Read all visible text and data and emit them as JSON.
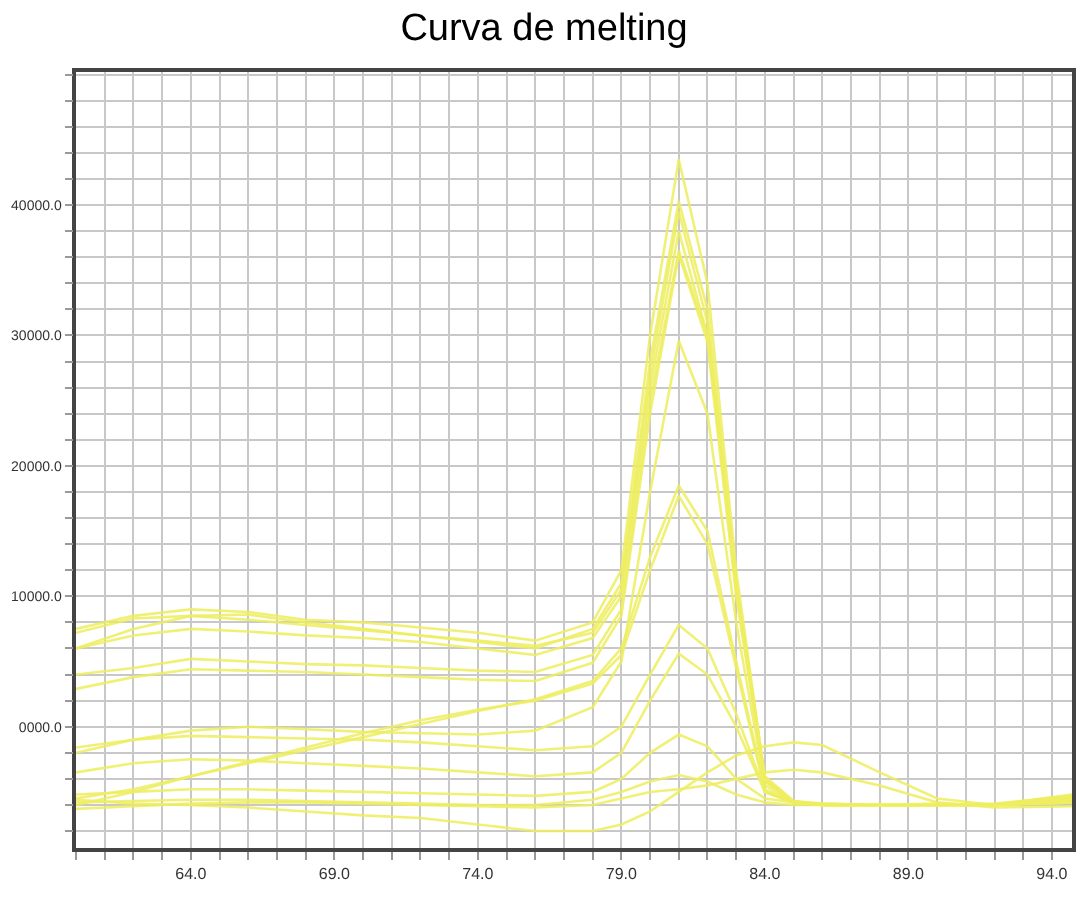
{
  "chart_data": {
    "type": "line",
    "title": "Curva de melting",
    "x": [
      60,
      62,
      64,
      66,
      68,
      70,
      72,
      74,
      76,
      78,
      79,
      80,
      81,
      82,
      83,
      84,
      85,
      86,
      88,
      90,
      92,
      94.7
    ],
    "series": [
      {
        "color": "#eeee60",
        "values": [
          7500,
          8500,
          9000,
          8800,
          8200,
          8000,
          7600,
          7200,
          6600,
          8000,
          12000,
          30000,
          43500,
          34000,
          12000,
          -4000,
          -5800,
          -6000,
          -6000,
          -5900,
          -6000,
          -5200
        ]
      },
      {
        "color": "#eeee60",
        "values": [
          6000,
          7500,
          8500,
          8600,
          8000,
          7500,
          7000,
          6500,
          6000,
          7500,
          11000,
          28000,
          40300,
          32000,
          11000,
          -4000,
          -5800,
          -5900,
          -6000,
          -6000,
          -6000,
          -5500
        ]
      },
      {
        "color": "#eeee60",
        "values": [
          7200,
          8300,
          8500,
          8200,
          7800,
          7400,
          7000,
          6600,
          6200,
          7200,
          10500,
          27000,
          39500,
          31000,
          11000,
          -4200,
          -5800,
          -6000,
          -6000,
          -6000,
          -5900,
          -5300
        ]
      },
      {
        "color": "#eeee60",
        "values": [
          6000,
          7000,
          7500,
          7300,
          7000,
          6800,
          6500,
          6000,
          5500,
          6800,
          10000,
          26000,
          38000,
          30000,
          10500,
          -4200,
          -5700,
          -6000,
          -6000,
          -6000,
          -6000,
          -5600
        ]
      },
      {
        "color": "#eeee60",
        "values": [
          4000,
          4500,
          5200,
          5000,
          4800,
          4700,
          4500,
          4300,
          4200,
          5500,
          9000,
          25000,
          36500,
          30000,
          11000,
          -3800,
          -5700,
          -5900,
          -6000,
          -6000,
          -6000,
          -5600
        ]
      },
      {
        "color": "#eeee60",
        "values": [
          2900,
          3800,
          4400,
          4300,
          4200,
          4000,
          3800,
          3600,
          3500,
          4900,
          8500,
          24000,
          36200,
          29500,
          10000,
          -4000,
          -5800,
          -6000,
          -6000,
          -6000,
          -6000,
          -5500
        ]
      },
      {
        "color": "#eeee60",
        "values": [
          -2000,
          -1000,
          -300,
          0,
          -200,
          -400,
          -500,
          -600,
          -300,
          1500,
          5000,
          18000,
          29600,
          24000,
          8000,
          -4500,
          -5800,
          -6000,
          -6000,
          -6000,
          -6000,
          -5600
        ]
      },
      {
        "color": "#eeee60",
        "values": [
          -6000,
          -5000,
          -3800,
          -2800,
          -1800,
          -800,
          200,
          1200,
          2100,
          3500,
          6000,
          13000,
          18500,
          15000,
          5000,
          -4800,
          -5800,
          -6000,
          -6000,
          -6000,
          -6000,
          -5600
        ]
      },
      {
        "color": "#eeee60",
        "values": [
          -5500,
          -4800,
          -3800,
          -2700,
          -1600,
          -500,
          500,
          1300,
          2000,
          3300,
          5500,
          12000,
          17700,
          14000,
          4500,
          -5000,
          -5800,
          -6000,
          -6000,
          -6000,
          -6000,
          -5700
        ]
      },
      {
        "color": "#eeee60",
        "values": [
          -1600,
          -1000,
          -700,
          -800,
          -900,
          -1000,
          -1200,
          -1500,
          -1800,
          -1500,
          0,
          4000,
          7800,
          6000,
          1000,
          -5000,
          -5800,
          -6000,
          -6000,
          -6000,
          -6000,
          -5800
        ]
      },
      {
        "color": "#eeee60",
        "values": [
          -3500,
          -2800,
          -2500,
          -2600,
          -2800,
          -3000,
          -3200,
          -3500,
          -3800,
          -3500,
          -2000,
          2000,
          5600,
          4000,
          0,
          -5000,
          -5800,
          -6000,
          -6000,
          -6000,
          -6000,
          -5800
        ]
      },
      {
        "color": "#eeee60",
        "values": [
          -5200,
          -5000,
          -4800,
          -4800,
          -4900,
          -5000,
          -5100,
          -5200,
          -5300,
          -5000,
          -4000,
          -2000,
          -600,
          -1500,
          -4000,
          -5500,
          -5800,
          -6000,
          -6000,
          -6000,
          -6000,
          -5700
        ]
      },
      {
        "color": "#eeee60",
        "values": [
          -5800,
          -5700,
          -5600,
          -5600,
          -5700,
          -5800,
          -5900,
          -6000,
          -6000,
          -5600,
          -5000,
          -4200,
          -3700,
          -4200,
          -5200,
          -5800,
          -6000,
          -6000,
          -6000,
          -6000,
          -6000,
          -5800
        ]
      },
      {
        "color": "#eeee60",
        "values": [
          -5600,
          -5900,
          -6000,
          -6200,
          -6500,
          -6800,
          -7000,
          -7500,
          -8000,
          -8000,
          -7500,
          -6500,
          -5000,
          -3500,
          -2200,
          -1500,
          -1200,
          -1400,
          -3500,
          -5500,
          -6000,
          -5400
        ]
      },
      {
        "color": "#eeee60",
        "values": [
          -6300,
          -6100,
          -5900,
          -5800,
          -5800,
          -5900,
          -6000,
          -6100,
          -6200,
          -6000,
          -5500,
          -5000,
          -4800,
          -4500,
          -4000,
          -3500,
          -3300,
          -3500,
          -4500,
          -5800,
          -6200,
          -6100
        ]
      }
    ],
    "xlim": [
      60,
      94.7
    ],
    "xticks": [
      {
        "value": 60,
        "label": null
      },
      {
        "value": 61,
        "label": null
      },
      {
        "value": 62,
        "label": null
      },
      {
        "value": 63,
        "label": null
      },
      {
        "value": 64,
        "label": "64.0"
      },
      {
        "value": 65,
        "label": null
      },
      {
        "value": 66,
        "label": null
      },
      {
        "value": 67,
        "label": null
      },
      {
        "value": 68,
        "label": null
      },
      {
        "value": 69,
        "label": "69.0"
      },
      {
        "value": 70,
        "label": null
      },
      {
        "value": 71,
        "label": null
      },
      {
        "value": 72,
        "label": null
      },
      {
        "value": 73,
        "label": null
      },
      {
        "value": 74,
        "label": "74.0"
      },
      {
        "value": 75,
        "label": null
      },
      {
        "value": 76,
        "label": null
      },
      {
        "value": 77,
        "label": null
      },
      {
        "value": 78,
        "label": null
      },
      {
        "value": 79,
        "label": "79.0"
      },
      {
        "value": 80,
        "label": null
      },
      {
        "value": 81,
        "label": null
      },
      {
        "value": 82,
        "label": null
      },
      {
        "value": 83,
        "label": null
      },
      {
        "value": 84,
        "label": "84.0"
      },
      {
        "value": 85,
        "label": null
      },
      {
        "value": 86,
        "label": null
      },
      {
        "value": 87,
        "label": null
      },
      {
        "value": 88,
        "label": null
      },
      {
        "value": 89,
        "label": "89.0"
      },
      {
        "value": 90,
        "label": null
      },
      {
        "value": 91,
        "label": null
      },
      {
        "value": 92,
        "label": null
      },
      {
        "value": 93,
        "label": null
      },
      {
        "value": 94,
        "label": "94.0"
      }
    ],
    "ylim": [
      -9300,
      50200
    ],
    "yticks": [
      {
        "value": -8000,
        "label": null
      },
      {
        "value": -6000,
        "label": null
      },
      {
        "value": -4000,
        "label": null
      },
      {
        "value": -2000,
        "label": null
      },
      {
        "value": 0,
        "label": "0000.0"
      },
      {
        "value": 2000,
        "label": null
      },
      {
        "value": 4000,
        "label": null
      },
      {
        "value": 6000,
        "label": null
      },
      {
        "value": 8000,
        "label": null
      },
      {
        "value": 10000,
        "label": "10000.0"
      },
      {
        "value": 12000,
        "label": null
      },
      {
        "value": 14000,
        "label": null
      },
      {
        "value": 16000,
        "label": null
      },
      {
        "value": 18000,
        "label": null
      },
      {
        "value": 20000,
        "label": "20000.0"
      },
      {
        "value": 22000,
        "label": null
      },
      {
        "value": 24000,
        "label": null
      },
      {
        "value": 26000,
        "label": null
      },
      {
        "value": 28000,
        "label": null
      },
      {
        "value": 30000,
        "label": "30000.0"
      },
      {
        "value": 32000,
        "label": null
      },
      {
        "value": 34000,
        "label": null
      },
      {
        "value": 36000,
        "label": null
      },
      {
        "value": 38000,
        "label": null
      },
      {
        "value": 40000,
        "label": "40000.0"
      },
      {
        "value": 42000,
        "label": null
      },
      {
        "value": 44000,
        "label": null
      },
      {
        "value": 46000,
        "label": null
      },
      {
        "value": 48000,
        "label": null
      },
      {
        "value": 50000,
        "label": null
      }
    ],
    "grid": true,
    "marker": "none",
    "line_style": "solid"
  }
}
